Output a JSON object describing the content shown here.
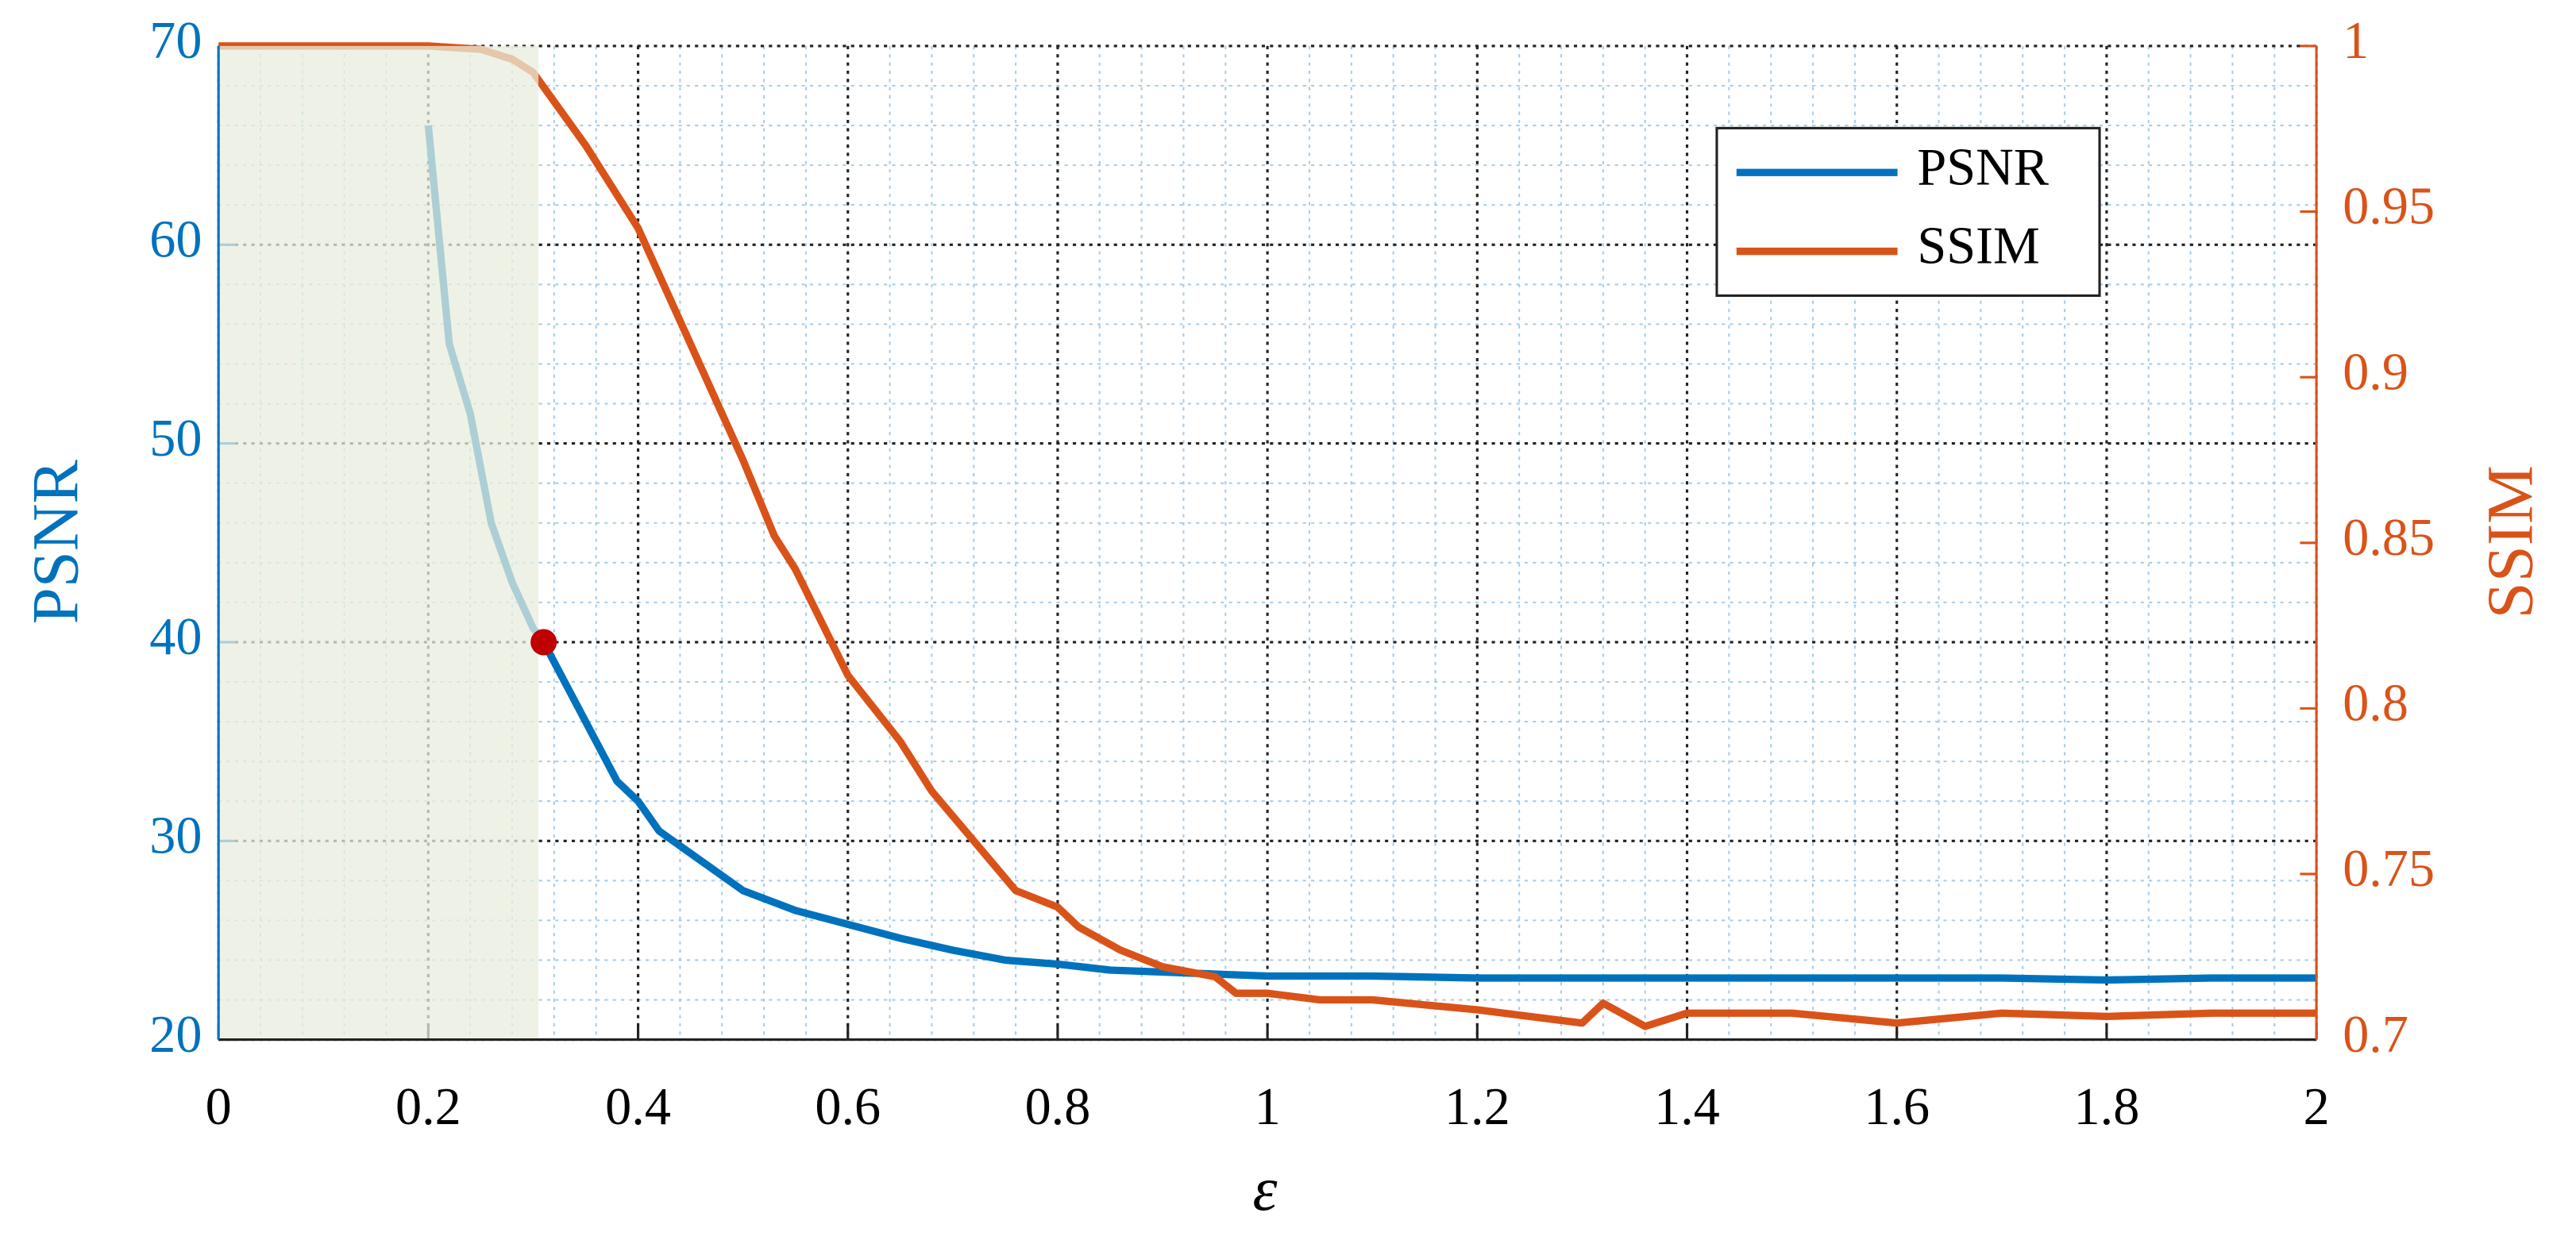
{
  "chart_data": {
    "type": "line",
    "xlabel": "ε",
    "ylabel": "PSNR",
    "y2label": "SSIM",
    "xlim": [
      0,
      2
    ],
    "xticks": [
      0,
      0.2,
      0.4,
      0.6,
      0.8,
      1,
      1.2,
      1.4,
      1.6,
      1.8,
      2
    ],
    "ylim": [
      20,
      70
    ],
    "yticks": [
      20,
      30,
      40,
      50,
      60,
      70
    ],
    "y2lim": [
      0.7,
      1
    ],
    "y2ticks": [
      0.7,
      0.75,
      0.8,
      0.85,
      0.9,
      0.95,
      1
    ],
    "grid": true,
    "minor_grid": true,
    "legend": "northeast",
    "highlight": {
      "xlim": [
        0,
        0.305
      ],
      "color": "#e8eedd"
    },
    "marker": {
      "x": 0.31,
      "y": 40,
      "color": "#c00000"
    },
    "series": [
      {
        "name": "PSNR",
        "color": "#0072BD",
        "x": [
          0.2,
          0.22,
          0.24,
          0.26,
          0.28,
          0.3,
          0.31,
          0.33,
          0.36,
          0.38,
          0.4,
          0.42,
          0.46,
          0.5,
          0.55,
          0.6,
          0.65,
          0.7,
          0.75,
          0.8,
          0.85,
          0.9,
          0.95,
          1.0,
          1.1,
          1.2,
          1.3,
          1.4,
          1.5,
          1.6,
          1.7,
          1.8,
          1.9,
          2.0
        ],
        "values": [
          66,
          55,
          51.5,
          46,
          43,
          40.7,
          40,
          38,
          35,
          33,
          32,
          30.5,
          29,
          27.5,
          26.5,
          25.8,
          25.1,
          24.5,
          24.0,
          23.8,
          23.5,
          23.4,
          23.3,
          23.2,
          23.2,
          23.1,
          23.1,
          23.1,
          23.1,
          23.1,
          23.1,
          23.0,
          23.1,
          23.1
        ]
      },
      {
        "name": "SSIM",
        "color": "#D95319",
        "axis": "y2",
        "x": [
          0,
          0.2,
          0.25,
          0.28,
          0.3,
          0.35,
          0.4,
          0.45,
          0.5,
          0.53,
          0.55,
          0.6,
          0.65,
          0.68,
          0.72,
          0.76,
          0.8,
          0.82,
          0.86,
          0.9,
          0.95,
          0.97,
          1.0,
          1.05,
          1.1,
          1.2,
          1.3,
          1.32,
          1.36,
          1.4,
          1.5,
          1.6,
          1.7,
          1.8,
          1.9,
          2.0
        ],
        "values": [
          1,
          1,
          0.999,
          0.996,
          0.992,
          0.97,
          0.945,
          0.91,
          0.875,
          0.852,
          0.842,
          0.81,
          0.79,
          0.775,
          0.76,
          0.745,
          0.74,
          0.734,
          0.727,
          0.722,
          0.719,
          0.714,
          0.714,
          0.712,
          0.712,
          0.709,
          0.705,
          0.711,
          0.704,
          0.708,
          0.708,
          0.705,
          0.708,
          0.707,
          0.708,
          0.708
        ]
      }
    ]
  }
}
